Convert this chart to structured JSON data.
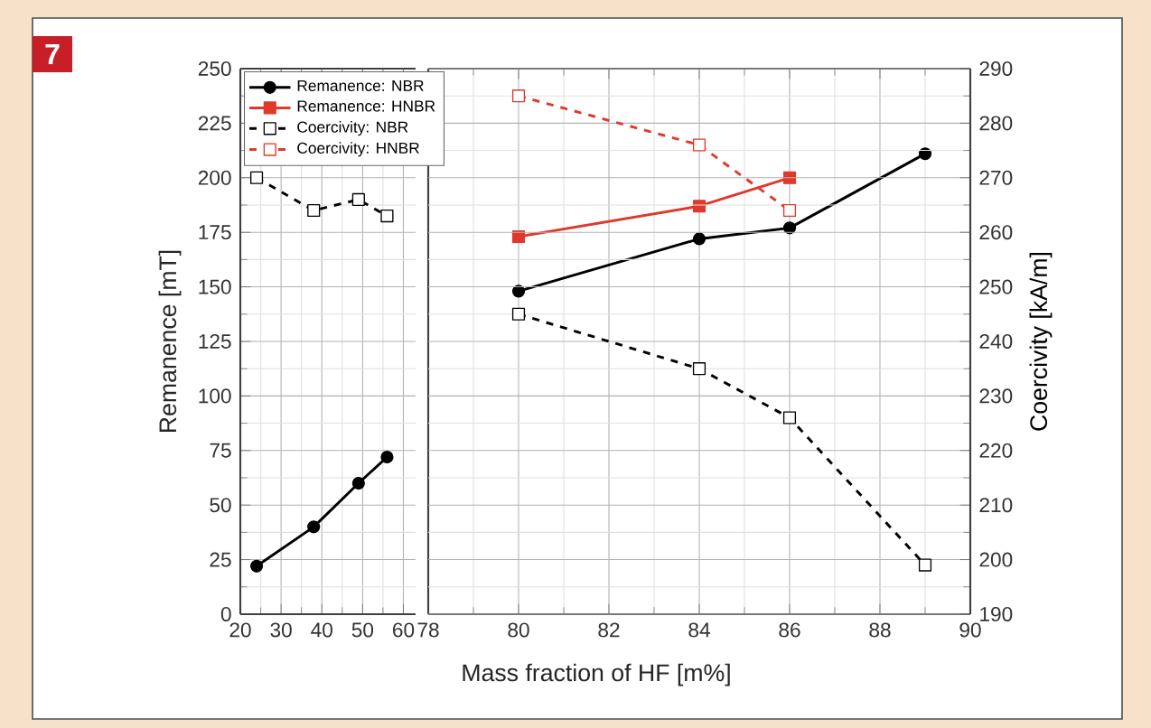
{
  "chart_data": [
    {
      "type": "line",
      "ylabel": "Remanence [mT]",
      "annotations": [
        "7"
      ],
      "xlim": [
        20,
        63
      ],
      "xticks": [
        20,
        30,
        40,
        50,
        60
      ],
      "ylim": [
        0,
        250
      ],
      "yticks": [
        0,
        25,
        50,
        75,
        100,
        125,
        150,
        175,
        200,
        225,
        250
      ],
      "y2lim": [
        190,
        290
      ],
      "tick_labels": [
        "x",
        "y"
      ],
      "grid": true,
      "series": [
        {
          "color": "#000000",
          "marker": "circle",
          "line_style": "solid",
          "x": [
            24,
            38,
            49,
            56
          ],
          "values": [
            22,
            40,
            60,
            72
          ]
        },
        {
          "color": "#000000",
          "marker": "square",
          "line_style": "dashed",
          "axis": "y2",
          "x": [
            24,
            38,
            49,
            56
          ],
          "values": [
            270,
            264,
            266,
            263
          ]
        }
      ]
    },
    {
      "type": "line",
      "xlabel": "Mass fraction of HF [m%]",
      "y2label": "Coercivity [kA/m]",
      "xlim": [
        78,
        90
      ],
      "xticks": [
        78,
        80,
        82,
        84,
        86,
        88,
        90
      ],
      "ylim": [
        0,
        250
      ],
      "y2lim": [
        190,
        290
      ],
      "y2ticks": [
        190,
        200,
        210,
        220,
        230,
        240,
        250,
        260,
        270,
        280,
        290
      ],
      "tick_labels": [
        "x",
        "y2"
      ],
      "grid": true,
      "legend": "top left",
      "series": [
        {
          "name": "Remanence: NBR",
          "color": "#000000",
          "marker": "circle",
          "line_style": "solid",
          "x": [
            80,
            84,
            86,
            89
          ],
          "values": [
            148,
            172,
            177,
            211
          ]
        },
        {
          "name": "Remanence: HNBR",
          "color": "#e0392b",
          "marker": "square",
          "line_style": "solid",
          "x": [
            80,
            84,
            86
          ],
          "values": [
            173,
            187,
            200
          ]
        },
        {
          "name": "Coercivity: NBR",
          "color": "#000000",
          "marker": "square",
          "line_style": "dashed",
          "axis": "y2",
          "x": [
            80,
            84,
            86,
            89
          ],
          "values": [
            245,
            235,
            226,
            199
          ]
        },
        {
          "name": "Coercivity: HNBR",
          "color": "#e0392b",
          "marker": "square",
          "line_style": "dashed",
          "axis": "y2",
          "x": [
            80,
            84,
            86
          ],
          "values": [
            285,
            276,
            264
          ]
        }
      ]
    }
  ]
}
